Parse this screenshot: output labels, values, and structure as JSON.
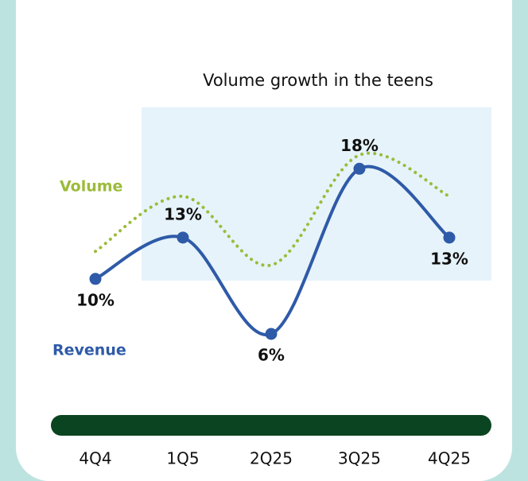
{
  "chart_data": {
    "type": "line",
    "title": "Volume growth in the teens",
    "categories": [
      "4Q4",
      "1Q5",
      "2Q25",
      "3Q25",
      "4Q25"
    ],
    "series": [
      {
        "name": "Volume",
        "color": "#9bbb3a",
        "values": [
          12,
          16,
          11,
          19,
          16
        ]
      },
      {
        "name": "Revenue",
        "color": "#2e5aa8",
        "values": [
          10,
          13,
          6,
          18,
          13
        ],
        "value_labels": [
          "10%",
          "13%",
          "6%",
          "18%",
          "13%"
        ]
      }
    ]
  }
}
